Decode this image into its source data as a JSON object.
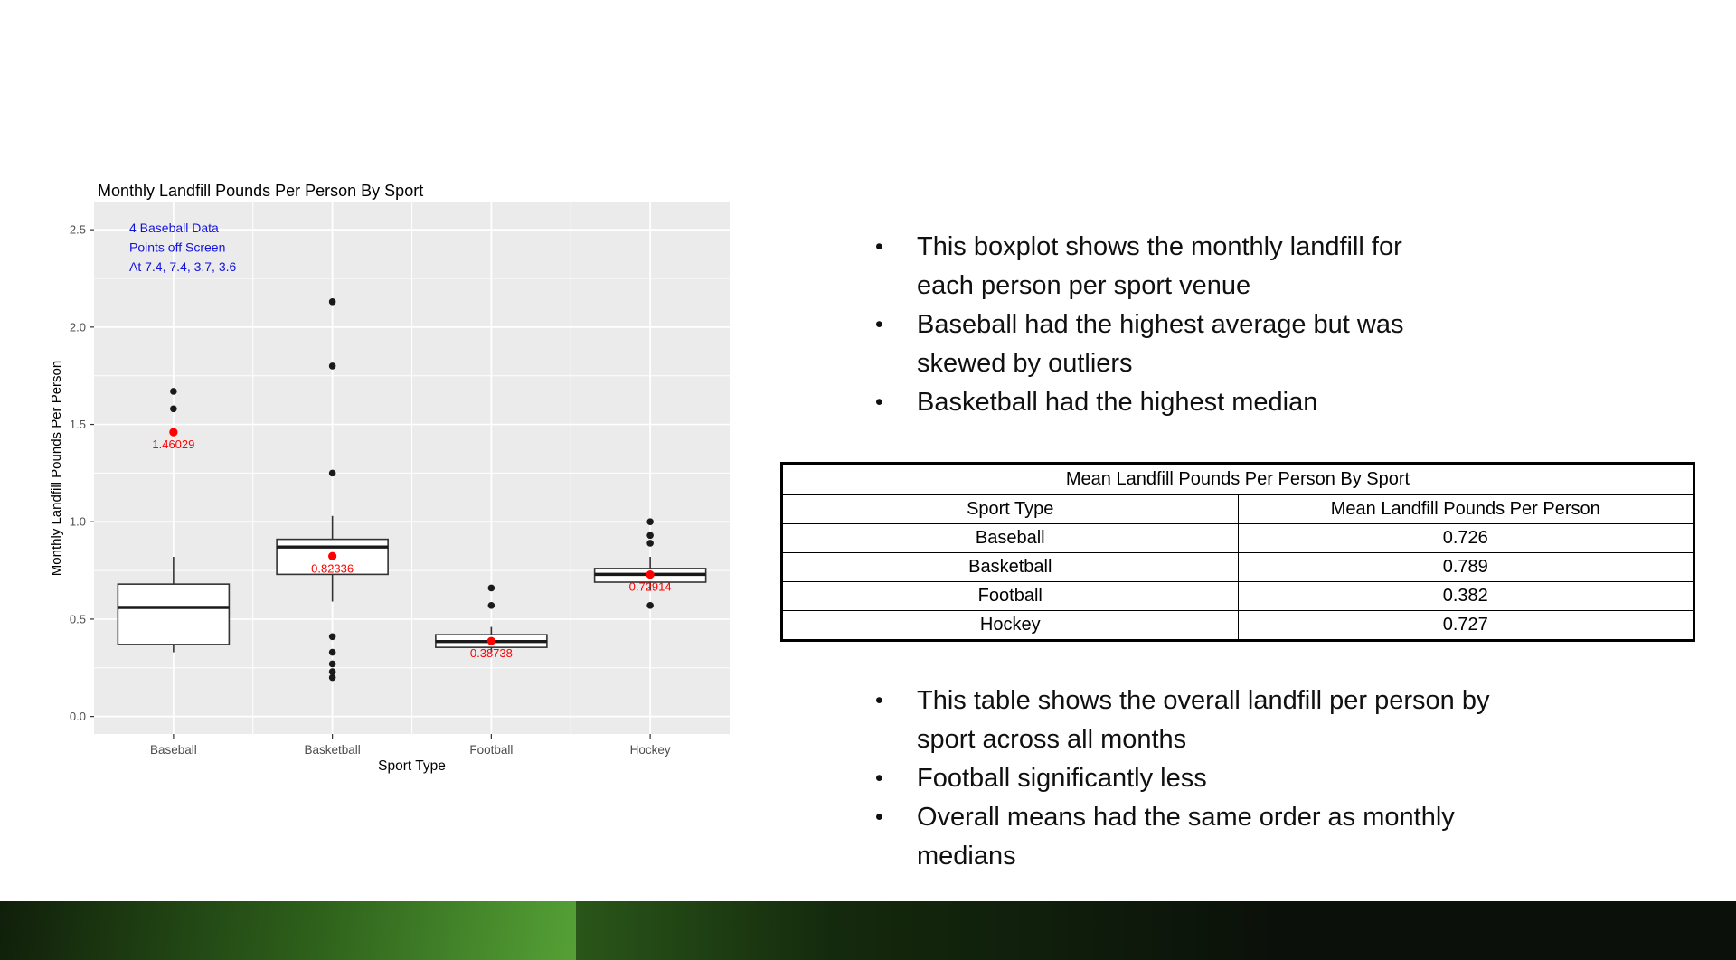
{
  "chart_data": {
    "type": "boxplot",
    "title": "Monthly Landfill Pounds Per Person By Sport",
    "xlabel": "Sport Type",
    "ylabel": "Monthly Landfill Pounds Per Person",
    "ylim": [
      -0.09,
      2.64
    ],
    "yticks": [
      0.0,
      0.5,
      1.0,
      1.5,
      2.0,
      2.5
    ],
    "grid": "ggplot-gray-panel-white-gridlines",
    "panel_color": "#ebebeb",
    "mean_color": "#ff0000",
    "annotation": {
      "color": "#1212dd",
      "lines": [
        "4 Baseball Data",
        "Points off Screen",
        "At 7.4, 7.4, 3.7, 3.6"
      ]
    },
    "categories": [
      "Baseball",
      "Basketball",
      "Football",
      "Hockey"
    ],
    "series": [
      {
        "category": "Baseball",
        "whisker_low": 0.33,
        "q1": 0.37,
        "median": 0.56,
        "q3": 0.68,
        "whisker_high": 0.82,
        "outliers": [
          1.67,
          1.58
        ],
        "offscreen_outliers": [
          7.4,
          7.4,
          3.7,
          3.6
        ],
        "mean": 1.46029,
        "mean_label": "1.46029"
      },
      {
        "category": "Basketball",
        "whisker_low": 0.59,
        "q1": 0.73,
        "median": 0.87,
        "q3": 0.91,
        "whisker_high": 1.03,
        "outliers": [
          2.13,
          1.8,
          1.25,
          0.41,
          0.33,
          0.27,
          0.23,
          0.2
        ],
        "mean": 0.82336,
        "mean_label": "0.82336"
      },
      {
        "category": "Football",
        "whisker_low": 0.33,
        "q1": 0.355,
        "median": 0.385,
        "q3": 0.42,
        "whisker_high": 0.46,
        "outliers": [
          0.66,
          0.57
        ],
        "mean": 0.38738,
        "mean_label": "0.38738"
      },
      {
        "category": "Hockey",
        "whisker_low": 0.65,
        "q1": 0.69,
        "median": 0.73,
        "q3": 0.76,
        "whisker_high": 0.82,
        "outliers": [
          1.0,
          0.93,
          0.89,
          0.57
        ],
        "mean": 0.72914,
        "mean_label": "0.72914"
      }
    ]
  },
  "right_panel": {
    "bullet_char": "•",
    "top_bullets": [
      {
        "text": "This boxplot shows the monthly landfill for\neach person per sport venue"
      },
      {
        "text": "Baseball had the highest average but was\nskewed by outliers"
      },
      {
        "text": "Basketball had the highest median"
      }
    ],
    "bottom_bullets": [
      {
        "text": "This table shows the overall landfill per person by\nsport across all months"
      },
      {
        "text": "Football significantly less"
      },
      {
        "text": "Overall means had the same order as monthly\nmedians"
      }
    ]
  },
  "table": {
    "title": "Mean Landfill Pounds Per Person By Sport",
    "columns": [
      "Sport Type",
      "Mean Landfill Pounds Per Person"
    ],
    "rows": [
      {
        "sport": "Baseball",
        "mean": "0.726"
      },
      {
        "sport": "Basketball",
        "mean": "0.789"
      },
      {
        "sport": "Football",
        "mean": "0.382"
      },
      {
        "sport": "Hockey",
        "mean": "0.727"
      }
    ]
  },
  "theme": {
    "footer_left_gradient": [
      "#101f0a",
      "#2e611b",
      "#55a136"
    ],
    "footer_right_gradient": [
      "#2a5619",
      "#142a0d",
      "#0b110a"
    ]
  }
}
